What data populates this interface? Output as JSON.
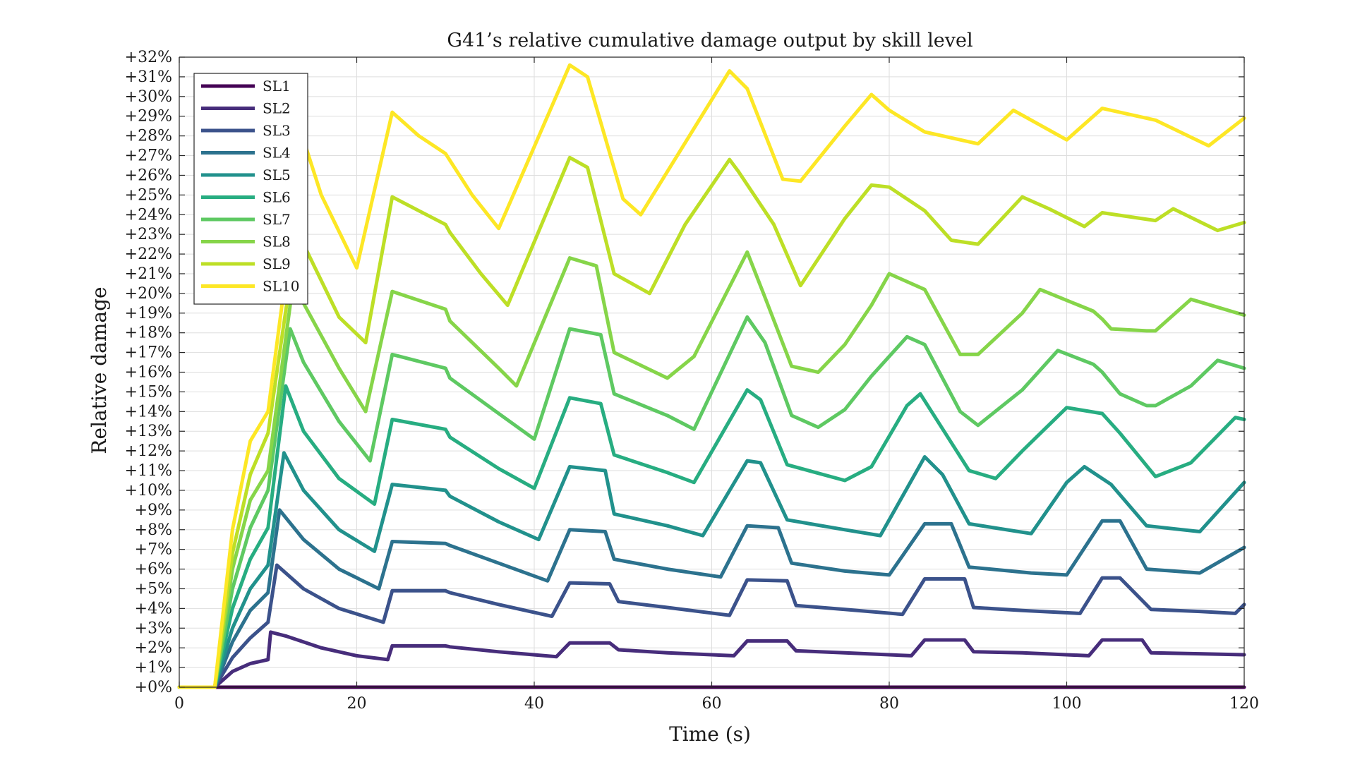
{
  "chart_data": {
    "type": "line",
    "title": "G41’s relative cumulative damage output by skill level",
    "xlabel": "Time (s)",
    "ylabel": "Relative damage",
    "xlim": [
      0,
      120
    ],
    "ylim": [
      0,
      32
    ],
    "xticks": [
      0,
      20,
      40,
      60,
      80,
      100,
      120
    ],
    "xtick_labels": [
      "0",
      "20",
      "40",
      "60",
      "80",
      "100",
      "120"
    ],
    "yticks": [
      0,
      1,
      2,
      3,
      4,
      5,
      6,
      7,
      8,
      9,
      10,
      11,
      12,
      13,
      14,
      15,
      16,
      17,
      18,
      19,
      20,
      21,
      22,
      23,
      24,
      25,
      26,
      27,
      28,
      29,
      30,
      31,
      32
    ],
    "ytick_labels": [
      "+0%",
      "+1%",
      "+2%",
      "+3%",
      "+4%",
      "+5%",
      "+6%",
      "+7%",
      "+8%",
      "+9%",
      "+10%",
      "+11%",
      "+12%",
      "+13%",
      "+14%",
      "+15%",
      "+16%",
      "+17%",
      "+18%",
      "+19%",
      "+20%",
      "+21%",
      "+22%",
      "+23%",
      "+24%",
      "+25%",
      "+26%",
      "+27%",
      "+28%",
      "+29%",
      "+30%",
      "+31%",
      "+32%"
    ],
    "grid": true,
    "legend_position": "top-left",
    "series": [
      {
        "name": "SL1",
        "color": "#440154",
        "x": [
          0,
          120
        ],
        "y": [
          0,
          0
        ]
      },
      {
        "name": "SL2",
        "color": "#472d7b",
        "x": [
          0,
          4,
          6,
          8,
          10,
          10.3,
          12,
          16,
          20,
          23.5,
          24,
          30,
          30.5,
          36,
          42.5,
          44,
          48.5,
          49.5,
          55,
          62.5,
          64,
          68.5,
          69.5,
          75,
          82.5,
          84,
          88.5,
          89.5,
          95,
          102.5,
          104,
          108.5,
          109.5,
          115,
          120
        ],
        "y": [
          0,
          0,
          0.8,
          1.2,
          1.4,
          2.8,
          2.6,
          2.0,
          1.6,
          1.4,
          2.1,
          2.1,
          2.05,
          1.8,
          1.55,
          2.25,
          2.25,
          1.9,
          1.75,
          1.6,
          2.35,
          2.35,
          1.85,
          1.75,
          1.6,
          2.4,
          2.4,
          1.8,
          1.75,
          1.6,
          2.4,
          2.4,
          1.75,
          1.7,
          1.65
        ]
      },
      {
        "name": "SL3",
        "color": "#3b528b",
        "x": [
          0,
          4,
          6,
          8,
          10,
          11,
          14,
          18,
          23,
          24,
          30,
          30.5,
          36,
          42,
          44,
          48.5,
          49.5,
          55,
          62,
          64,
          68.5,
          69.5,
          75,
          81.5,
          84,
          88.5,
          89.5,
          95,
          101.5,
          104,
          106,
          109.5,
          115,
          119,
          120
        ],
        "y": [
          0,
          0,
          1.5,
          2.5,
          3.3,
          6.2,
          5.0,
          4.0,
          3.3,
          4.9,
          4.9,
          4.8,
          4.2,
          3.6,
          5.3,
          5.25,
          4.35,
          4.05,
          3.65,
          5.45,
          5.4,
          4.15,
          3.95,
          3.7,
          5.5,
          5.5,
          4.05,
          3.9,
          3.75,
          5.55,
          5.55,
          3.95,
          3.85,
          3.75,
          4.2
        ]
      },
      {
        "name": "SL4",
        "color": "#2c728e",
        "x": [
          0,
          4,
          6,
          8,
          10,
          11.3,
          14,
          18,
          22.5,
          24,
          30,
          30.5,
          36,
          41.5,
          44,
          48,
          49,
          55,
          61,
          64,
          67.5,
          69,
          75,
          80,
          84,
          87,
          89,
          96,
          100,
          104,
          106,
          109,
          115,
          120
        ],
        "y": [
          0,
          0,
          2.3,
          3.9,
          4.8,
          9.0,
          7.5,
          6.0,
          5.0,
          7.4,
          7.3,
          7.2,
          6.3,
          5.4,
          8.0,
          7.9,
          6.5,
          6.0,
          5.6,
          8.2,
          8.1,
          6.3,
          5.9,
          5.7,
          8.3,
          8.3,
          6.1,
          5.8,
          5.7,
          8.45,
          8.45,
          6.0,
          5.8,
          7.1
        ]
      },
      {
        "name": "SL5",
        "color": "#21918c",
        "x": [
          0,
          4,
          6,
          8,
          10,
          11.8,
          14,
          18,
          22,
          24,
          30,
          30.5,
          36,
          40.5,
          44,
          48,
          49,
          55,
          59,
          64,
          65.5,
          68.5,
          75,
          79,
          84,
          86,
          89,
          96,
          100,
          102,
          105,
          109,
          115,
          120
        ],
        "y": [
          0,
          0,
          3.0,
          5.0,
          6.2,
          11.9,
          10.0,
          8.0,
          6.9,
          10.3,
          10.0,
          9.7,
          8.4,
          7.5,
          11.2,
          11.0,
          8.8,
          8.2,
          7.7,
          11.5,
          11.4,
          8.5,
          8.0,
          7.7,
          11.7,
          10.8,
          8.3,
          7.8,
          10.4,
          11.2,
          10.3,
          8.2,
          7.9,
          10.4
        ]
      },
      {
        "name": "SL6",
        "color": "#27ad81",
        "x": [
          0,
          4,
          6,
          8,
          10,
          12,
          14,
          18,
          22,
          24,
          30,
          30.5,
          36,
          40,
          44,
          47.5,
          49,
          55,
          58,
          64,
          65.5,
          68.5,
          75,
          78,
          82,
          83.5,
          89,
          92,
          95,
          100,
          104,
          106,
          110,
          114,
          119,
          120
        ],
        "y": [
          0,
          0,
          4.0,
          6.5,
          8.1,
          15.3,
          13.0,
          10.6,
          9.3,
          13.6,
          13.1,
          12.7,
          11.1,
          10.1,
          14.7,
          14.4,
          11.8,
          10.9,
          10.4,
          15.1,
          14.6,
          11.3,
          10.5,
          11.2,
          14.3,
          14.9,
          11.0,
          10.6,
          12.0,
          14.2,
          13.9,
          12.9,
          10.7,
          11.4,
          13.7,
          13.6
        ]
      },
      {
        "name": "SL7",
        "color": "#5ec962",
        "x": [
          0,
          4,
          6,
          8,
          10,
          12.5,
          14,
          18,
          21.5,
          24,
          30,
          30.5,
          36,
          40,
          44,
          47.5,
          49,
          55,
          58,
          64,
          66,
          69,
          72,
          75,
          78,
          82,
          84,
          88,
          90,
          95,
          99,
          103,
          104,
          106,
          109,
          110,
          114,
          117,
          120
        ],
        "y": [
          0,
          0,
          5.0,
          8.1,
          10.0,
          18.2,
          16.5,
          13.5,
          11.5,
          16.9,
          16.2,
          15.7,
          13.9,
          12.6,
          18.2,
          17.9,
          14.9,
          13.8,
          13.1,
          18.8,
          17.5,
          13.8,
          13.2,
          14.1,
          15.8,
          17.8,
          17.4,
          14.0,
          13.3,
          15.1,
          17.1,
          16.4,
          16.0,
          14.9,
          14.3,
          14.3,
          15.3,
          16.6,
          16.2
        ]
      },
      {
        "name": "SL8",
        "color": "#86d549",
        "x": [
          0,
          4,
          6,
          8,
          10,
          13,
          14,
          18,
          21,
          24,
          30,
          30.5,
          36,
          38,
          44,
          47,
          49,
          55,
          58,
          64,
          66,
          69,
          72,
          75,
          78,
          80,
          84,
          88,
          90,
          95,
          97,
          103,
          104,
          105,
          109,
          110,
          114,
          120
        ],
        "y": [
          0,
          0,
          6.0,
          9.5,
          11.0,
          21.1,
          19.5,
          16.2,
          14.0,
          20.1,
          19.2,
          18.6,
          16.2,
          15.3,
          21.8,
          21.4,
          17.0,
          15.7,
          16.8,
          22.1,
          19.8,
          16.3,
          16.0,
          17.4,
          19.4,
          21.0,
          20.2,
          16.9,
          16.9,
          19.0,
          20.2,
          19.1,
          18.7,
          18.2,
          18.1,
          18.1,
          19.7,
          18.9
        ]
      },
      {
        "name": "SL9",
        "color": "#bddf26",
        "x": [
          0,
          4,
          6,
          8,
          10,
          13.5,
          14,
          18,
          21,
          24,
          27,
          30,
          30.5,
          34,
          37,
          44,
          46,
          49,
          53,
          57,
          62,
          63,
          67,
          70,
          75,
          78,
          80,
          84,
          87,
          90,
          95,
          98,
          102,
          104,
          110,
          112,
          117,
          120
        ],
        "y": [
          0,
          0,
          6.8,
          10.8,
          12.9,
          23.8,
          22.5,
          18.8,
          17.5,
          24.9,
          24.2,
          23.5,
          23.1,
          21.0,
          19.4,
          26.9,
          26.4,
          21.0,
          20.0,
          23.5,
          26.8,
          26.2,
          23.5,
          20.4,
          23.8,
          25.5,
          25.4,
          24.2,
          22.7,
          22.5,
          24.9,
          24.3,
          23.4,
          24.1,
          23.7,
          24.3,
          23.2,
          23.6
        ]
      },
      {
        "name": "SL10",
        "color": "#fde725",
        "x": [
          0,
          4,
          6,
          8,
          10,
          14,
          16,
          20,
          24,
          27,
          30,
          33,
          36,
          44,
          46,
          50,
          52,
          62,
          64,
          68,
          70,
          75,
          78,
          80,
          84,
          86,
          90,
          94,
          100,
          104,
          110,
          116,
          120
        ],
        "y": [
          0,
          0,
          8.0,
          12.5,
          14.0,
          27.8,
          25.0,
          21.3,
          29.2,
          28.0,
          27.1,
          25.0,
          23.3,
          31.6,
          31.0,
          24.8,
          24.0,
          31.3,
          30.4,
          25.8,
          25.7,
          28.5,
          30.1,
          29.3,
          28.2,
          28.0,
          27.6,
          29.3,
          27.8,
          29.4,
          28.8,
          27.5,
          28.9
        ]
      }
    ]
  }
}
